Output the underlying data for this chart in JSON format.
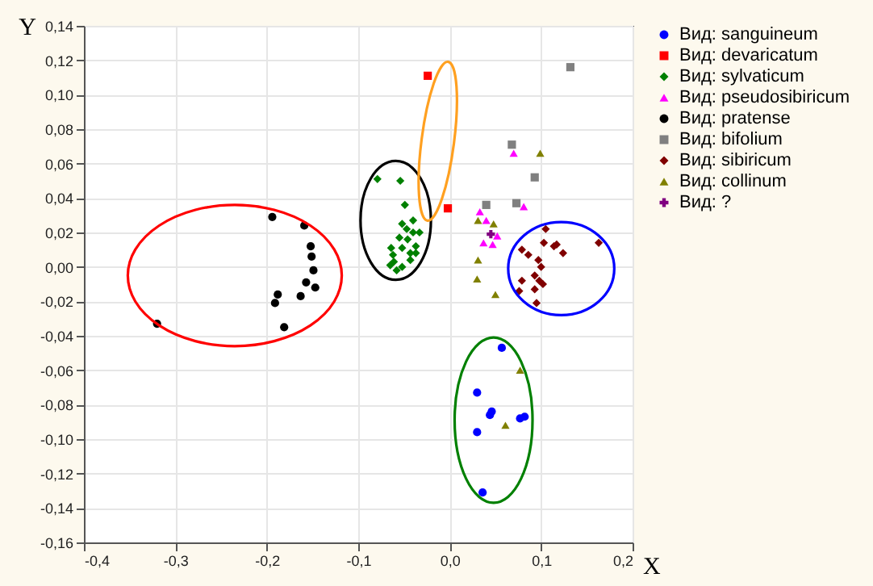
{
  "chart_data": {
    "type": "scatter",
    "xlabel": "X",
    "ylabel": "Y",
    "xlim": [
      -0.4,
      0.2
    ],
    "ylim": [
      -0.16,
      0.14
    ],
    "xticks": [
      {
        "value": -0.4,
        "label": "-0,4"
      },
      {
        "value": -0.3,
        "label": "-0,3"
      },
      {
        "value": -0.2,
        "label": "-0,2"
      },
      {
        "value": -0.1,
        "label": "-0,1"
      },
      {
        "value": 0,
        "label": "0,0"
      },
      {
        "value": 0.1,
        "label": "0,1"
      },
      {
        "value": 0.2,
        "label": "0,2"
      }
    ],
    "yticks": [
      {
        "value": -0.16,
        "label": "-0,16"
      },
      {
        "value": -0.14,
        "label": "-0,14"
      },
      {
        "value": -0.12,
        "label": "-0,12"
      },
      {
        "value": -0.1,
        "label": "-0,10"
      },
      {
        "value": -0.08,
        "label": "-0,08"
      },
      {
        "value": -0.06,
        "label": "-0,06"
      },
      {
        "value": -0.04,
        "label": "-0,04"
      },
      {
        "value": -0.02,
        "label": "-0,02"
      },
      {
        "value": 0,
        "label": "0,00"
      },
      {
        "value": 0.02,
        "label": "0,02"
      },
      {
        "value": 0.04,
        "label": "0,04"
      },
      {
        "value": 0.06,
        "label": "0,06"
      },
      {
        "value": 0.08,
        "label": "0,08"
      },
      {
        "value": 0.1,
        "label": "0,10"
      },
      {
        "value": 0.12,
        "label": "0,12"
      },
      {
        "value": 0.14,
        "label": "0,14"
      }
    ],
    "grid": true,
    "legend": "right",
    "series": [
      {
        "name": "Вид: sanguineum",
        "color": "#0000ff",
        "marker": "circle",
        "x": [
          0.057,
          0.03,
          0.046,
          0.044,
          0.03,
          0.077,
          0.082,
          0.036
        ],
        "values": [
          -0.047,
          -0.073,
          -0.084,
          -0.086,
          -0.096,
          -0.088,
          -0.087,
          -0.131
        ]
      },
      {
        "name": "Вид: devaricatum",
        "color": "#ff0000",
        "marker": "square",
        "x": [
          -0.024,
          -0.002
        ],
        "values": [
          0.111,
          0.034
        ]
      },
      {
        "name": "Вид: sylvaticum",
        "color": "#008000",
        "marker": "diamond",
        "x": [
          -0.079,
          -0.054,
          -0.049,
          -0.052,
          -0.04,
          -0.047,
          -0.04,
          -0.055,
          -0.046,
          -0.033,
          -0.037,
          -0.052,
          -0.064,
          -0.043,
          -0.062,
          -0.037,
          -0.061,
          -0.043,
          -0.052,
          -0.058,
          -0.065
        ],
        "values": [
          0.051,
          0.05,
          0.036,
          0.025,
          0.027,
          0.022,
          0.02,
          0.017,
          0.016,
          0.02,
          0.012,
          0.011,
          0.011,
          0.008,
          0.007,
          0.008,
          0.003,
          0.004,
          0.0,
          -0.002,
          0.001
        ]
      },
      {
        "name": "Вид: pseudosibiricum",
        "color": "#ff00ff",
        "marker": "triangle",
        "x": [
          0.07,
          0.081,
          0.033,
          0.04,
          0.052,
          0.037,
          0.047
        ],
        "values": [
          0.066,
          0.035,
          0.032,
          0.027,
          0.018,
          0.014,
          0.013
        ]
      },
      {
        "name": "Вид: pratense",
        "color": "#000000",
        "marker": "circle",
        "x": [
          -0.194,
          -0.159,
          -0.152,
          -0.151,
          -0.149,
          -0.157,
          -0.147,
          -0.188,
          -0.163,
          -0.191,
          -0.181,
          -0.32
        ],
        "values": [
          0.029,
          0.024,
          0.012,
          0.006,
          -0.002,
          -0.009,
          -0.012,
          -0.016,
          -0.017,
          -0.021,
          -0.035,
          -0.033
        ]
      },
      {
        "name": "Вид: bifolium",
        "color": "#808080",
        "marker": "square",
        "x": [
          0.132,
          0.068,
          0.093,
          0.04,
          0.073
        ],
        "values": [
          0.116,
          0.071,
          0.052,
          0.036,
          0.037
        ]
      },
      {
        "name": "Вид: sibiricum",
        "color": "#800000",
        "marker": "diamond",
        "x": [
          0.105,
          0.103,
          0.117,
          0.114,
          0.124,
          0.163,
          0.079,
          0.086,
          0.097,
          0.1,
          0.093,
          0.098,
          0.102,
          0.079,
          0.093,
          0.076,
          0.095
        ],
        "values": [
          0.022,
          0.014,
          0.013,
          0.012,
          0.008,
          0.014,
          0.01,
          0.007,
          0.004,
          0.0,
          -0.005,
          -0.008,
          -0.01,
          -0.008,
          -0.013,
          -0.014,
          -0.021
        ]
      },
      {
        "name": "Вид: collinum",
        "color": "#808000",
        "marker": "triangle",
        "x": [
          0.099,
          0.031,
          0.048,
          0.031,
          0.03,
          0.05,
          0.077,
          0.061
        ],
        "values": [
          0.066,
          0.027,
          0.025,
          0.004,
          -0.007,
          -0.016,
          -0.06,
          -0.092
        ]
      },
      {
        "name": "Вид: ?",
        "color": "#800080",
        "marker": "cross",
        "x": [
          0.045
        ],
        "values": [
          0.019
        ]
      }
    ]
  }
}
